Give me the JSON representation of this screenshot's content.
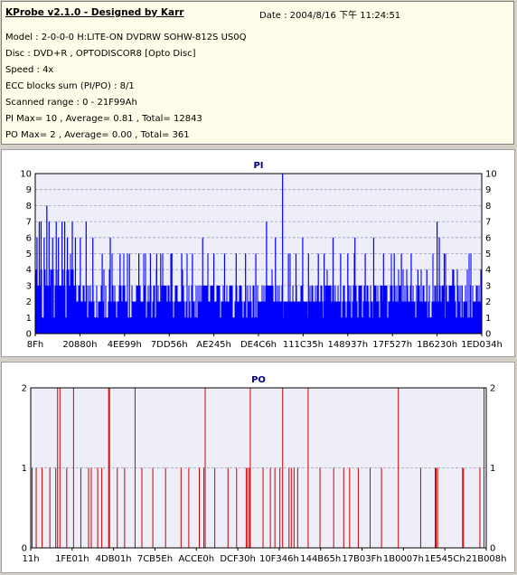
{
  "header": {
    "title": "KProbe v2.1.0 - Designed by Karr",
    "date": "Date : 2004/8/16 下午 11:24:51",
    "lines": [
      "Model : 2-0-0-0 H:LITE-ON DVDRW SOHW-812S  US0Q",
      "Disc : DVD+R , OPTODISCOR8 [Opto Disc]",
      "Speed : 4x",
      "ECC blocks sum (PI/PO) : 8/1",
      "Scanned range : 0 - 21F99Ah",
      "PI Max= 10 , Average= 0.81 , Total= 12843",
      "PO Max= 2 , Average= 0.00 , Total= 361"
    ]
  },
  "colors": {
    "background": "#d4d0c8",
    "plot_background": "#eeeef8",
    "pi_bars": "#0000ff",
    "po_bars": "#cc0000",
    "title_text": "#000080",
    "grid": "#a0a0c0"
  },
  "chart_data": [
    {
      "type": "bar",
      "title": "PI",
      "ylim": [
        0,
        10
      ],
      "yticks": [
        0,
        1,
        2,
        3,
        4,
        5,
        6,
        7,
        8,
        9,
        10
      ],
      "xticks": [
        "8Fh",
        "20880h",
        "4EE99h",
        "7DD56h",
        "AE245h",
        "DE4C6h",
        "111C35h",
        "148937h",
        "17F527h",
        "1B6230h",
        "1ED034h"
      ],
      "grid": true,
      "baseline_typical": 2,
      "spikes": [
        {
          "x": 0.004,
          "value": 6
        },
        {
          "x": 0.009,
          "value": 7
        },
        {
          "x": 0.013,
          "value": 7
        },
        {
          "x": 0.02,
          "value": 6
        },
        {
          "x": 0.026,
          "value": 8
        },
        {
          "x": 0.031,
          "value": 7
        },
        {
          "x": 0.039,
          "value": 6
        },
        {
          "x": 0.047,
          "value": 7
        },
        {
          "x": 0.052,
          "value": 6
        },
        {
          "x": 0.06,
          "value": 7
        },
        {
          "x": 0.066,
          "value": 7
        },
        {
          "x": 0.072,
          "value": 6
        },
        {
          "x": 0.083,
          "value": 7
        },
        {
          "x": 0.09,
          "value": 6
        },
        {
          "x": 0.101,
          "value": 6
        },
        {
          "x": 0.114,
          "value": 7
        },
        {
          "x": 0.129,
          "value": 6
        },
        {
          "x": 0.15,
          "value": 5
        },
        {
          "x": 0.168,
          "value": 6
        },
        {
          "x": 0.19,
          "value": 5
        },
        {
          "x": 0.211,
          "value": 5
        },
        {
          "x": 0.232,
          "value": 5
        },
        {
          "x": 0.258,
          "value": 5
        },
        {
          "x": 0.272,
          "value": 5
        },
        {
          "x": 0.281,
          "value": 5
        },
        {
          "x": 0.306,
          "value": 5
        },
        {
          "x": 0.328,
          "value": 5
        },
        {
          "x": 0.352,
          "value": 5
        },
        {
          "x": 0.375,
          "value": 6
        },
        {
          "x": 0.4,
          "value": 5
        },
        {
          "x": 0.424,
          "value": 5
        },
        {
          "x": 0.45,
          "value": 5
        },
        {
          "x": 0.471,
          "value": 5
        },
        {
          "x": 0.494,
          "value": 5
        },
        {
          "x": 0.518,
          "value": 7
        },
        {
          "x": 0.538,
          "value": 6
        },
        {
          "x": 0.554,
          "value": 10
        },
        {
          "x": 0.567,
          "value": 5
        },
        {
          "x": 0.584,
          "value": 5
        },
        {
          "x": 0.599,
          "value": 6
        },
        {
          "x": 0.612,
          "value": 5
        },
        {
          "x": 0.634,
          "value": 5
        },
        {
          "x": 0.647,
          "value": 5
        },
        {
          "x": 0.667,
          "value": 6
        },
        {
          "x": 0.684,
          "value": 5
        },
        {
          "x": 0.7,
          "value": 5
        },
        {
          "x": 0.716,
          "value": 6
        },
        {
          "x": 0.739,
          "value": 5
        },
        {
          "x": 0.758,
          "value": 6
        },
        {
          "x": 0.78,
          "value": 5
        },
        {
          "x": 0.804,
          "value": 5
        },
        {
          "x": 0.82,
          "value": 5
        },
        {
          "x": 0.842,
          "value": 5
        },
        {
          "x": 0.857,
          "value": 4
        },
        {
          "x": 0.877,
          "value": 4
        },
        {
          "x": 0.9,
          "value": 7
        },
        {
          "x": 0.905,
          "value": 6
        },
        {
          "x": 0.916,
          "value": 5
        },
        {
          "x": 0.935,
          "value": 4
        },
        {
          "x": 0.956,
          "value": 3
        },
        {
          "x": 0.975,
          "value": 3
        },
        {
          "x": 0.99,
          "value": 3
        }
      ]
    },
    {
      "type": "bar",
      "title": "PO",
      "ylim": [
        0,
        2
      ],
      "yticks": [
        0,
        1,
        2
      ],
      "xticks": [
        "11h",
        "1FE01h",
        "4DB01h",
        "7CB5Eh",
        "ACCE0h",
        "DCF30h",
        "10F346h",
        "144B65h",
        "17B03Fh",
        "1B0007h",
        "1E545Ch",
        "21B008h"
      ],
      "grid": true,
      "points": [
        {
          "x": 0.003,
          "value": 1
        },
        {
          "x": 0.012,
          "value": 1
        },
        {
          "x": 0.025,
          "value": 1
        },
        {
          "x": 0.042,
          "value": 1
        },
        {
          "x": 0.055,
          "value": 1
        },
        {
          "x": 0.059,
          "value": 2
        },
        {
          "x": 0.064,
          "value": 2
        },
        {
          "x": 0.079,
          "value": 1
        },
        {
          "x": 0.094,
          "value": 2
        },
        {
          "x": 0.11,
          "value": 1
        },
        {
          "x": 0.127,
          "value": 1
        },
        {
          "x": 0.133,
          "value": 1
        },
        {
          "x": 0.147,
          "value": 1
        },
        {
          "x": 0.156,
          "value": 1
        },
        {
          "x": 0.171,
          "value": 2
        },
        {
          "x": 0.173,
          "value": 2
        },
        {
          "x": 0.19,
          "value": 1
        },
        {
          "x": 0.206,
          "value": 1
        },
        {
          "x": 0.229,
          "value": 2
        },
        {
          "x": 0.244,
          "value": 1
        },
        {
          "x": 0.268,
          "value": 1
        },
        {
          "x": 0.296,
          "value": 1
        },
        {
          "x": 0.33,
          "value": 1
        },
        {
          "x": 0.347,
          "value": 1
        },
        {
          "x": 0.37,
          "value": 1
        },
        {
          "x": 0.38,
          "value": 1
        },
        {
          "x": 0.383,
          "value": 2
        },
        {
          "x": 0.404,
          "value": 1
        },
        {
          "x": 0.433,
          "value": 1
        },
        {
          "x": 0.452,
          "value": 1
        },
        {
          "x": 0.473,
          "value": 1
        },
        {
          "x": 0.476,
          "value": 1
        },
        {
          "x": 0.48,
          "value": 1
        },
        {
          "x": 0.482,
          "value": 2
        },
        {
          "x": 0.51,
          "value": 1
        },
        {
          "x": 0.526,
          "value": 1
        },
        {
          "x": 0.536,
          "value": 1
        },
        {
          "x": 0.547,
          "value": 1
        },
        {
          "x": 0.553,
          "value": 2
        },
        {
          "x": 0.567,
          "value": 1
        },
        {
          "x": 0.572,
          "value": 1
        },
        {
          "x": 0.578,
          "value": 1
        },
        {
          "x": 0.586,
          "value": 1
        },
        {
          "x": 0.609,
          "value": 2
        },
        {
          "x": 0.635,
          "value": 1
        },
        {
          "x": 0.665,
          "value": 1
        },
        {
          "x": 0.687,
          "value": 1
        },
        {
          "x": 0.7,
          "value": 1
        },
        {
          "x": 0.719,
          "value": 1
        },
        {
          "x": 0.745,
          "value": 1
        },
        {
          "x": 0.77,
          "value": 1
        },
        {
          "x": 0.807,
          "value": 2
        },
        {
          "x": 0.856,
          "value": 1
        },
        {
          "x": 0.888,
          "value": 1
        },
        {
          "x": 0.89,
          "value": 1
        },
        {
          "x": 0.893,
          "value": 1
        },
        {
          "x": 0.948,
          "value": 1
        },
        {
          "x": 0.95,
          "value": 1
        },
        {
          "x": 0.986,
          "value": 1
        },
        {
          "x": 0.995,
          "value": 2
        }
      ]
    }
  ]
}
